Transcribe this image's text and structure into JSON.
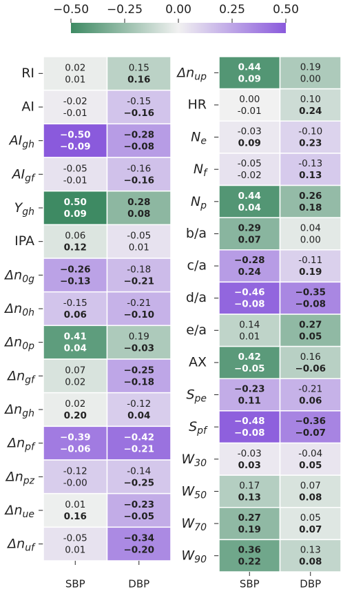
{
  "chart_data": {
    "type": "heatmap",
    "colormap": [
      "#3e8a63",
      "#f1f1f1",
      "#8a5adc"
    ],
    "clim": [
      -0.5,
      0.5
    ],
    "cticks": [
      {
        "value": -0.5,
        "label": "−0.50"
      },
      {
        "value": -0.25,
        "label": "−0.25"
      },
      {
        "value": 0,
        "label": "0.00"
      },
      {
        "value": 0.25,
        "label": "0.25"
      },
      {
        "value": 0.5,
        "label": "0.50"
      }
    ],
    "panels": [
      {
        "columns": [
          "SBP",
          "DBP"
        ],
        "rows": [
          "RI",
          "AI",
          {
            "text": "AI",
            "sub": "gh"
          },
          {
            "text": "AI",
            "sub": "gf"
          },
          {
            "text": "Y",
            "sub": "gh"
          },
          "IPA",
          {
            "text": "Δn",
            "sub": "0g"
          },
          {
            "text": "Δn",
            "sub": "0h"
          },
          {
            "text": "Δn",
            "sub": "0p"
          },
          {
            "text": "Δn",
            "sub": "gf"
          },
          {
            "text": "Δn",
            "sub": "gh"
          },
          {
            "text": "Δn",
            "sub": "pf"
          },
          {
            "text": "Δn",
            "sub": "pz"
          },
          {
            "text": "Δn",
            "sub": "ue"
          },
          {
            "text": "Δn",
            "sub": "uf"
          }
        ],
        "top": [
          [
            0.02,
            0.15
          ],
          [
            -0.02,
            -0.15
          ],
          [
            -0.5,
            -0.28
          ],
          [
            -0.05,
            -0.16
          ],
          [
            0.5,
            0.28
          ],
          [
            0.06,
            -0.05
          ],
          [
            -0.26,
            -0.18
          ],
          [
            -0.15,
            -0.21
          ],
          [
            0.41,
            0.19
          ],
          [
            0.07,
            -0.25
          ],
          [
            0.02,
            -0.12
          ],
          [
            -0.39,
            -0.42
          ],
          [
            -0.12,
            -0.14
          ],
          [
            0.01,
            -0.23
          ],
          [
            -0.05,
            -0.34
          ]
        ],
        "top_labels": [
          [
            "0.02",
            "0.15"
          ],
          [
            "-0.02",
            "-0.15"
          ],
          [
            "−0.50",
            "−0.28"
          ],
          [
            "-0.05",
            "-0.16"
          ],
          [
            "0.50",
            "0.28"
          ],
          [
            "0.06",
            "-0.05"
          ],
          [
            "−0.26",
            "-0.18"
          ],
          [
            "-0.15",
            "-0.21"
          ],
          [
            "0.41",
            "0.19"
          ],
          [
            "0.07",
            "−0.25"
          ],
          [
            "0.02",
            "-0.12"
          ],
          [
            "−0.39",
            "−0.42"
          ],
          [
            "-0.12",
            "-0.14"
          ],
          [
            "0.01",
            "−0.23"
          ],
          [
            "-0.05",
            "−0.34"
          ]
        ],
        "top_bold": [
          [
            false,
            false
          ],
          [
            false,
            false
          ],
          [
            true,
            true
          ],
          [
            false,
            false
          ],
          [
            true,
            true
          ],
          [
            false,
            false
          ],
          [
            true,
            false
          ],
          [
            false,
            false
          ],
          [
            true,
            false
          ],
          [
            false,
            true
          ],
          [
            false,
            false
          ],
          [
            true,
            true
          ],
          [
            false,
            false
          ],
          [
            false,
            true
          ],
          [
            false,
            true
          ]
        ],
        "bottom": [
          [
            0.01,
            0.16
          ],
          [
            -0.01,
            -0.16
          ],
          [
            -0.09,
            -0.08
          ],
          [
            -0.01,
            -0.16
          ],
          [
            0.09,
            0.08
          ],
          [
            0.12,
            0.01
          ],
          [
            -0.13,
            -0.21
          ],
          [
            0.06,
            -0.1
          ],
          [
            0.04,
            -0.03
          ],
          [
            0.02,
            -0.18
          ],
          [
            0.2,
            0.04
          ],
          [
            -0.06,
            -0.21
          ],
          [
            0,
            -0.25
          ],
          [
            0.16,
            -0.05
          ],
          [
            0.01,
            -0.2
          ]
        ],
        "bottom_labels": [
          [
            "0.01",
            "0.16"
          ],
          [
            "-0.01",
            "−0.16"
          ],
          [
            "−0.09",
            "−0.08"
          ],
          [
            "-0.01",
            "−0.16"
          ],
          [
            "0.09",
            "0.08"
          ],
          [
            "0.12",
            "0.01"
          ],
          [
            "−0.13",
            "−0.21"
          ],
          [
            "0.06",
            "−0.10"
          ],
          [
            "0.04",
            "−0.03"
          ],
          [
            "0.02",
            "−0.18"
          ],
          [
            "0.20",
            "0.04"
          ],
          [
            "−0.06",
            "−0.21"
          ],
          [
            "-0.00",
            "−0.25"
          ],
          [
            "0.16",
            "−0.05"
          ],
          [
            "0.01",
            "−0.20"
          ]
        ],
        "bottom_bold": [
          [
            false,
            true
          ],
          [
            false,
            true
          ],
          [
            true,
            true
          ],
          [
            false,
            true
          ],
          [
            true,
            true
          ],
          [
            true,
            false
          ],
          [
            true,
            true
          ],
          [
            true,
            true
          ],
          [
            true,
            true
          ],
          [
            false,
            true
          ],
          [
            true,
            true
          ],
          [
            true,
            true
          ],
          [
            false,
            true
          ],
          [
            true,
            true
          ],
          [
            false,
            true
          ]
        ]
      },
      {
        "columns": [
          "SBP",
          "DBP"
        ],
        "rows": [
          {
            "text": "Δn",
            "sub": "up"
          },
          "HR",
          {
            "text": "N",
            "sub": "e"
          },
          {
            "text": "N",
            "sub": "f"
          },
          {
            "text": "N",
            "sub": "p"
          },
          "b/a",
          "c/a",
          "d/a",
          "e/a",
          "AX",
          {
            "text": "S",
            "sub": "pe"
          },
          {
            "text": "S",
            "sub": "pf"
          },
          {
            "text": "W",
            "sub": "30"
          },
          {
            "text": "W",
            "sub": "50"
          },
          {
            "text": "W",
            "sub": "70"
          },
          {
            "text": "W",
            "sub": "90"
          }
        ],
        "top": [
          [
            0.44,
            0.19
          ],
          [
            0,
            0.1
          ],
          [
            -0.03,
            -0.1
          ],
          [
            -0.05,
            -0.13
          ],
          [
            0.44,
            0.26
          ],
          [
            0.29,
            0.04
          ],
          [
            -0.28,
            -0.11
          ],
          [
            -0.46,
            -0.35
          ],
          [
            0.14,
            0.27
          ],
          [
            0.42,
            0.16
          ],
          [
            -0.23,
            -0.21
          ],
          [
            -0.48,
            -0.36
          ],
          [
            -0.03,
            -0.04
          ],
          [
            0.17,
            0.07
          ],
          [
            0.27,
            0.05
          ],
          [
            0.36,
            0.13
          ]
        ],
        "top_labels": [
          [
            "0.44",
            "0.19"
          ],
          [
            "0.00",
            "0.10"
          ],
          [
            "-0.03",
            "-0.10"
          ],
          [
            "-0.05",
            "-0.13"
          ],
          [
            "0.44",
            "0.26"
          ],
          [
            "0.29",
            "0.04"
          ],
          [
            "−0.28",
            "-0.11"
          ],
          [
            "−0.46",
            "−0.35"
          ],
          [
            "0.14",
            "0.27"
          ],
          [
            "0.42",
            "0.16"
          ],
          [
            "−0.23",
            "-0.21"
          ],
          [
            "−0.48",
            "−0.36"
          ],
          [
            "-0.03",
            "-0.04"
          ],
          [
            "0.17",
            "0.07"
          ],
          [
            "0.27",
            "0.05"
          ],
          [
            "0.36",
            "0.13"
          ]
        ],
        "top_bold": [
          [
            true,
            false
          ],
          [
            false,
            false
          ],
          [
            false,
            false
          ],
          [
            false,
            false
          ],
          [
            true,
            true
          ],
          [
            true,
            false
          ],
          [
            true,
            false
          ],
          [
            true,
            true
          ],
          [
            false,
            true
          ],
          [
            true,
            false
          ],
          [
            true,
            false
          ],
          [
            true,
            true
          ],
          [
            false,
            false
          ],
          [
            false,
            false
          ],
          [
            true,
            false
          ],
          [
            true,
            false
          ]
        ],
        "bottom": [
          [
            0.09,
            0
          ],
          [
            -0.01,
            0.24
          ],
          [
            0.09,
            0.23
          ],
          [
            -0.02,
            0.13
          ],
          [
            0.04,
            0.18
          ],
          [
            0.07,
            0
          ],
          [
            0.24,
            0.19
          ],
          [
            -0.08,
            -0.08
          ],
          [
            0.01,
            0.05
          ],
          [
            -0.05,
            -0.06
          ],
          [
            0.11,
            0.06
          ],
          [
            -0.08,
            -0.07
          ],
          [
            0.03,
            0.05
          ],
          [
            0.13,
            0.08
          ],
          [
            0.19,
            0.07
          ],
          [
            0.22,
            0.08
          ]
        ],
        "bottom_labels": [
          [
            "0.09",
            "0.00"
          ],
          [
            "-0.01",
            "0.24"
          ],
          [
            "0.09",
            "0.23"
          ],
          [
            "-0.02",
            "0.13"
          ],
          [
            "0.04",
            "0.18"
          ],
          [
            "0.07",
            "0.00"
          ],
          [
            "0.24",
            "0.19"
          ],
          [
            "−0.08",
            "−0.08"
          ],
          [
            "0.01",
            "0.05"
          ],
          [
            "−0.05",
            "−0.06"
          ],
          [
            "0.11",
            "0.06"
          ],
          [
            "−0.08",
            "−0.07"
          ],
          [
            "0.03",
            "0.05"
          ],
          [
            "0.13",
            "0.08"
          ],
          [
            "0.19",
            "0.07"
          ],
          [
            "0.22",
            "0.08"
          ]
        ],
        "bottom_bold": [
          [
            true,
            false
          ],
          [
            false,
            true
          ],
          [
            true,
            true
          ],
          [
            false,
            true
          ],
          [
            true,
            true
          ],
          [
            true,
            false
          ],
          [
            true,
            true
          ],
          [
            true,
            true
          ],
          [
            false,
            true
          ],
          [
            true,
            true
          ],
          [
            true,
            true
          ],
          [
            true,
            true
          ],
          [
            true,
            true
          ],
          [
            true,
            true
          ],
          [
            true,
            true
          ],
          [
            true,
            true
          ]
        ]
      }
    ]
  }
}
